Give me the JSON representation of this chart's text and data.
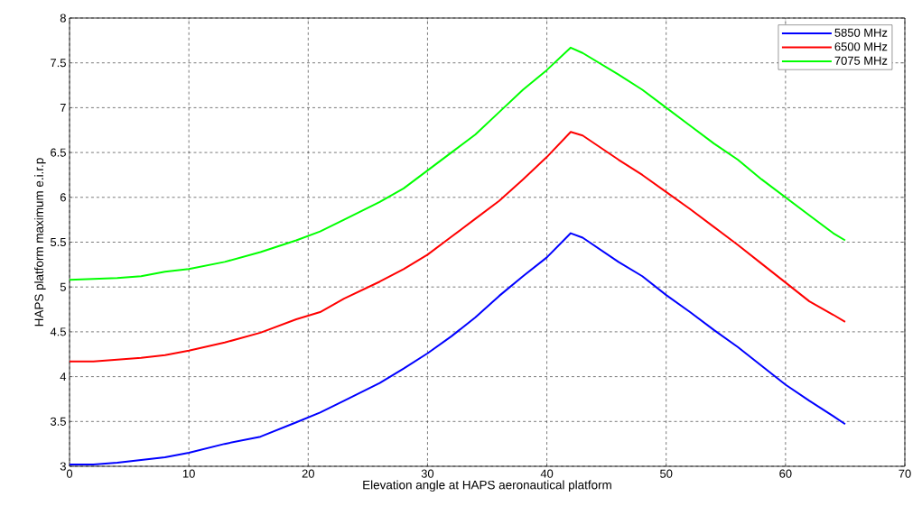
{
  "chart_data": {
    "type": "line",
    "xlabel": "Elevation angle at HAPS aeronautical platform",
    "ylabel": "HAPS platform maximum e.i.r.p",
    "x": [
      0,
      2,
      4,
      6,
      8,
      10,
      13,
      16,
      19,
      21,
      23,
      26,
      28,
      30,
      32,
      34,
      36,
      38,
      40,
      42,
      43,
      46,
      48,
      50,
      52,
      54,
      56,
      58,
      60,
      62,
      64,
      65
    ],
    "series": [
      {
        "name": "5850 MHz",
        "color": "#0000ff",
        "values": [
          3.02,
          3.02,
          3.04,
          3.07,
          3.1,
          3.15,
          3.25,
          3.33,
          3.49,
          3.6,
          3.73,
          3.93,
          4.09,
          4.26,
          4.45,
          4.66,
          4.9,
          5.12,
          5.33,
          5.6,
          5.55,
          5.28,
          5.12,
          4.91,
          4.72,
          4.52,
          4.33,
          4.12,
          3.91,
          3.73,
          3.56,
          3.47
        ]
      },
      {
        "name": "6500 MHz",
        "color": "#ff0000",
        "values": [
          4.17,
          4.17,
          4.19,
          4.21,
          4.24,
          4.29,
          4.38,
          4.49,
          4.64,
          4.72,
          4.87,
          5.06,
          5.2,
          5.36,
          5.56,
          5.76,
          5.96,
          6.2,
          6.45,
          6.73,
          6.69,
          6.42,
          6.25,
          6.06,
          5.87,
          5.67,
          5.47,
          5.26,
          5.05,
          4.84,
          4.69,
          4.61
        ]
      },
      {
        "name": "7075 MHz",
        "color": "#00ff00",
        "values": [
          5.08,
          5.09,
          5.1,
          5.12,
          5.17,
          5.2,
          5.28,
          5.39,
          5.52,
          5.62,
          5.75,
          5.95,
          6.1,
          6.3,
          6.5,
          6.7,
          6.95,
          7.2,
          7.42,
          7.67,
          7.61,
          7.37,
          7.2,
          7.0,
          6.8,
          6.6,
          6.42,
          6.2,
          6.0,
          5.8,
          5.6,
          5.52
        ]
      }
    ],
    "xlim": [
      0,
      70
    ],
    "ylim": [
      3,
      8
    ],
    "xticks": [
      0,
      10,
      20,
      30,
      40,
      50,
      60,
      70
    ],
    "yticks": [
      3,
      {
        "value": 3.5,
        "label": "3.5"
      },
      4,
      {
        "value": 4.5,
        "label": "4.5"
      },
      5,
      {
        "value": 5.5,
        "label": "5.5"
      },
      6,
      {
        "value": 6.5,
        "label": "6.5"
      },
      7,
      {
        "value": 7.5,
        "label": "7.5"
      },
      8
    ],
    "grid": true,
    "legend": "top right",
    "marker": "none",
    "line_style": "solid"
  }
}
